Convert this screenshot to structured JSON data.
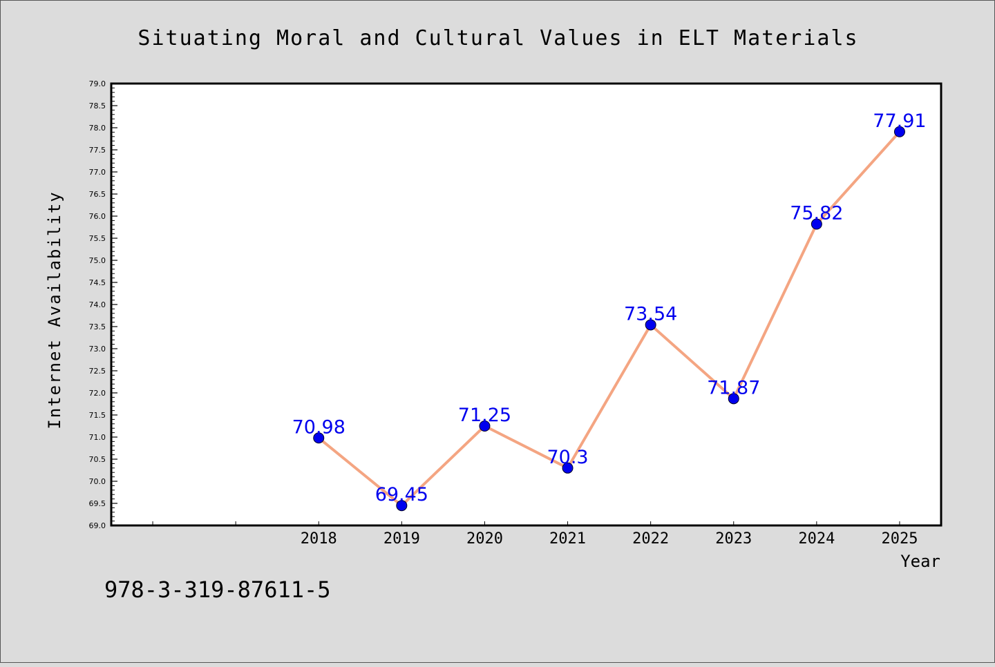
{
  "chart_data": {
    "type": "line",
    "title": "Situating Moral and Cultural Values in ELT Materials",
    "xlabel": "Year",
    "ylabel": "Internet Availability",
    "categories": [
      "2018",
      "2019",
      "2020",
      "2021",
      "2022",
      "2023",
      "2024",
      "2025"
    ],
    "series": [
      {
        "values": [
          70.98,
          69.45,
          71.25,
          70.3,
          73.54,
          71.87,
          75.82,
          77.91
        ],
        "data_labels": [
          "70.98",
          "69.45",
          "71.25",
          "70.3",
          "73.54",
          "71.87",
          "75.82",
          "77.91"
        ],
        "line_color": "#f4a582",
        "marker_color": "#0000ee",
        "label_color": "#0000ee"
      }
    ],
    "ylim": [
      69.0,
      79.0
    ],
    "ytick_step": 0.5,
    "ytick_labels": [
      "69.0",
      "69.5",
      "70.0",
      "70.5",
      "71.0",
      "71.5",
      "72.0",
      "72.5",
      "73.0",
      "73.5",
      "74.0",
      "74.5",
      "75.0",
      "75.5",
      "76.0",
      "76.5",
      "77.0",
      "77.5",
      "78.0",
      "78.5",
      "79.0"
    ],
    "grid": false,
    "legend": "none"
  },
  "footer_text": "978-3-319-87611-5"
}
